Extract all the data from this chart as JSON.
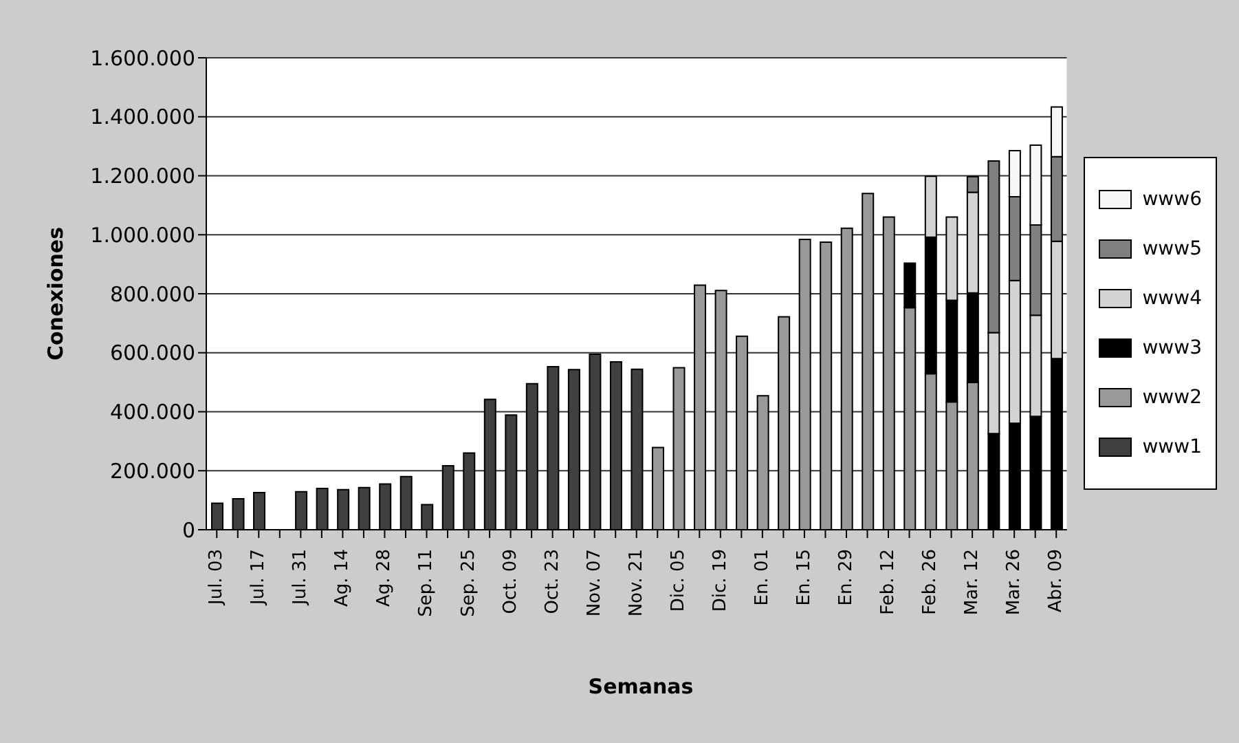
{
  "chart_data": {
    "type": "bar",
    "stacked": true,
    "xlabel": "Semanas",
    "ylabel": "Conexiones",
    "categories": [
      "Jul. 03",
      null,
      "Jul. 17",
      null,
      "Jul. 31",
      null,
      "Ag. 14",
      null,
      "Ag. 28",
      null,
      "Sep. 11",
      null,
      "Sep. 25",
      null,
      "Oct. 09",
      null,
      "Oct. 23",
      null,
      "Nov. 07",
      null,
      "Nov. 21",
      null,
      "Dic. 05",
      null,
      "Dic. 19",
      null,
      "En. 01",
      null,
      "En. 15",
      null,
      "En. 29",
      null,
      "Feb. 12",
      null,
      "Feb. 26",
      null,
      "Mar. 12",
      null,
      "Mar. 26",
      null,
      "Abr. 09"
    ],
    "series": [
      {
        "name": "www1",
        "color": "#404040",
        "values": [
          90000,
          105000,
          126000,
          0,
          129000,
          140000,
          136000,
          143000,
          155000,
          180000,
          85000,
          217000,
          260000,
          442000,
          389000,
          495000,
          553000,
          543000,
          595000,
          569000,
          544000,
          null,
          null,
          null,
          null,
          null,
          null,
          null,
          null,
          null,
          null,
          null,
          null,
          null,
          null,
          null,
          null,
          null,
          null,
          null,
          null
        ]
      },
      {
        "name": "www2",
        "color": "#999999",
        "values": [
          null,
          null,
          null,
          null,
          null,
          null,
          null,
          null,
          null,
          null,
          null,
          null,
          null,
          null,
          null,
          null,
          null,
          null,
          null,
          null,
          null,
          279000,
          549000,
          829000,
          811000,
          656000,
          454000,
          722000,
          984000,
          975000,
          1022000,
          1140000,
          1060000,
          753000,
          529000,
          433000,
          499000,
          null,
          null,
          null,
          null
        ]
      },
      {
        "name": "www3",
        "color": "#000000",
        "values": [
          null,
          null,
          null,
          null,
          null,
          null,
          null,
          null,
          null,
          null,
          null,
          null,
          null,
          null,
          null,
          null,
          null,
          null,
          null,
          null,
          null,
          null,
          null,
          null,
          null,
          null,
          null,
          null,
          null,
          null,
          null,
          null,
          null,
          151000,
          463000,
          345000,
          304000,
          326000,
          361000,
          384000,
          580000
        ]
      },
      {
        "name": "www4",
        "color": "#d3d3d3",
        "values": [
          null,
          null,
          null,
          null,
          null,
          null,
          null,
          null,
          null,
          null,
          null,
          null,
          null,
          null,
          null,
          null,
          null,
          null,
          null,
          null,
          null,
          null,
          null,
          null,
          null,
          null,
          null,
          null,
          null,
          null,
          null,
          null,
          null,
          null,
          206000,
          282000,
          341000,
          342000,
          484000,
          343000,
          398000
        ]
      },
      {
        "name": "www5",
        "color": "#808080",
        "values": [
          null,
          null,
          null,
          null,
          null,
          null,
          null,
          null,
          null,
          null,
          null,
          null,
          null,
          null,
          null,
          null,
          null,
          null,
          null,
          null,
          null,
          null,
          null,
          null,
          null,
          null,
          null,
          null,
          null,
          null,
          null,
          null,
          null,
          null,
          null,
          null,
          53000,
          582000,
          284000,
          306000,
          287000
        ]
      },
      {
        "name": "www6",
        "color": "#f7f7f7",
        "values": [
          null,
          null,
          null,
          null,
          null,
          null,
          null,
          null,
          null,
          null,
          null,
          null,
          null,
          null,
          null,
          null,
          null,
          null,
          null,
          null,
          null,
          null,
          null,
          null,
          null,
          null,
          null,
          null,
          null,
          null,
          null,
          null,
          null,
          null,
          null,
          null,
          null,
          null,
          156000,
          271000,
          168000
        ]
      }
    ],
    "ylim": [
      0,
      1600000
    ],
    "yticks": [
      0,
      {
        "value": 200000,
        "label": "200.000"
      },
      {
        "value": 400000,
        "label": "400.000"
      },
      {
        "value": 600000,
        "label": "600.000"
      },
      {
        "value": 800000,
        "label": "800.000"
      },
      {
        "value": 1000000,
        "label": "1.000.000"
      },
      {
        "value": 1200000,
        "label": "1.200.000"
      },
      {
        "value": 1400000,
        "label": "1.400.000"
      },
      {
        "value": 1600000,
        "label": "1.600.000"
      }
    ],
    "grid": "y",
    "legend": "right"
  }
}
